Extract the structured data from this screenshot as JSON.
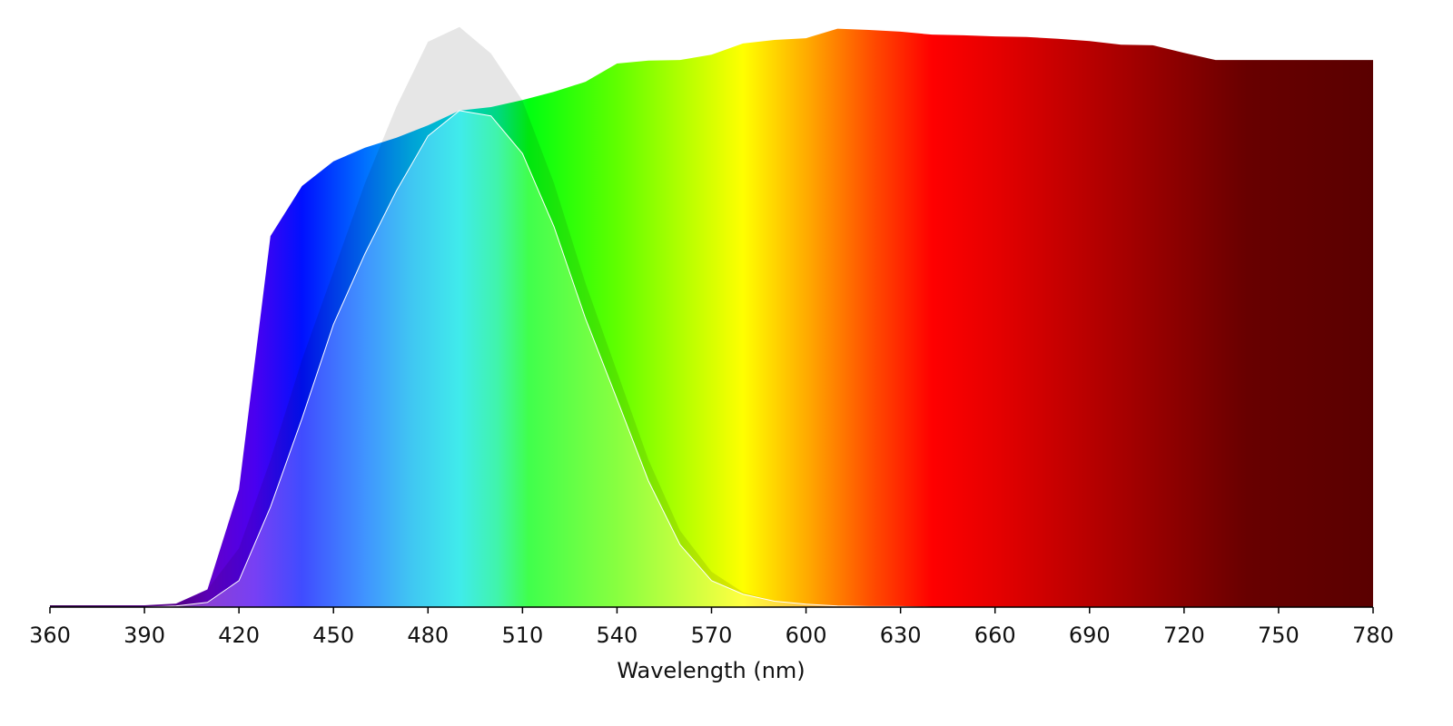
{
  "chart_data": {
    "type": "area",
    "x_label": "Wavelength (nm)",
    "x": [
      360,
      370,
      380,
      390,
      400,
      410,
      420,
      430,
      440,
      450,
      460,
      470,
      480,
      490,
      500,
      510,
      520,
      530,
      540,
      550,
      560,
      570,
      580,
      590,
      600,
      610,
      620,
      630,
      640,
      650,
      660,
      670,
      680,
      690,
      700,
      710,
      720,
      730,
      740,
      750,
      760,
      770,
      780
    ],
    "series": [
      {
        "values": [
          0.003,
          0.003,
          0.003,
          0.003,
          0.006,
          0.03,
          0.2,
          0.63,
          0.715,
          0.757,
          0.78,
          0.797,
          0.818,
          0.843,
          0.849,
          0.861,
          0.875,
          0.892,
          0.923,
          0.928,
          0.929,
          0.938,
          0.957,
          0.963,
          0.966,
          0.982,
          0.98,
          0.977,
          0.972,
          0.971,
          0.969,
          0.968,
          0.965,
          0.961,
          0.955,
          0.954,
          0.941,
          0.929,
          0.929,
          0.929,
          0.929,
          0.929,
          0.929
        ]
      },
      {
        "color": "#e6e6e6",
        "values": [
          0,
          0,
          0,
          0,
          0.003,
          0.03,
          0.1,
          0.25,
          0.42,
          0.57,
          0.72,
          0.85,
          0.96,
          0.985,
          0.94,
          0.86,
          0.72,
          0.55,
          0.4,
          0.25,
          0.13,
          0.06,
          0.025,
          0.01,
          0.003,
          0.001,
          0,
          0,
          0,
          0,
          0,
          0,
          0,
          0,
          0,
          0,
          0,
          0,
          0,
          0,
          0,
          0,
          0
        ]
      },
      {
        "values": [
          0,
          0,
          0,
          0,
          0.002,
          0.008,
          0.045,
          0.17,
          0.32,
          0.48,
          0.6,
          0.707,
          0.8,
          0.843,
          0.834,
          0.77,
          0.646,
          0.49,
          0.353,
          0.214,
          0.106,
          0.045,
          0.022,
          0.01,
          0.005,
          0.002,
          0.001,
          0.001,
          0,
          0,
          0,
          0,
          0,
          0,
          0,
          0,
          0,
          0,
          0,
          0,
          0,
          0,
          0
        ]
      }
    ],
    "xlim": [
      360,
      780
    ],
    "ylim": [
      0,
      1
    ],
    "xticks": [
      360,
      390,
      420,
      450,
      480,
      510,
      540,
      570,
      600,
      630,
      660,
      690,
      720,
      750,
      780
    ],
    "grid": false
  }
}
